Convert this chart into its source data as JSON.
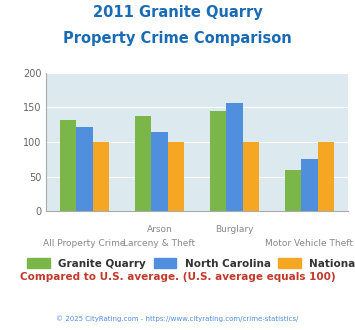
{
  "title_line1": "2011 Granite Quarry",
  "title_line2": "Property Crime Comparison",
  "x_labels_top": [
    "",
    "Arson",
    "Burglary",
    ""
  ],
  "x_labels_bottom": [
    "All Property Crime",
    "Larceny & Theft",
    "",
    "Motor Vehicle Theft"
  ],
  "granite_quarry": [
    131,
    137,
    144,
    60
  ],
  "north_carolina": [
    121,
    114,
    156,
    76
  ],
  "national": [
    100,
    100,
    100,
    100
  ],
  "colors": {
    "granite_quarry": "#7ab648",
    "north_carolina": "#4f8fde",
    "national": "#f5a623"
  },
  "ylim": [
    0,
    200
  ],
  "yticks": [
    0,
    50,
    100,
    150,
    200
  ],
  "background_color": "#dce9ef",
  "title_color": "#1a6bb5",
  "subtitle_text": "Compared to U.S. average. (U.S. average equals 100)",
  "subtitle_color": "#c0392b",
  "copyright_text": "© 2025 CityRating.com - https://www.cityrating.com/crime-statistics/",
  "copyright_color": "#4f8fde",
  "legend_labels": [
    "Granite Quarry",
    "North Carolina",
    "National"
  ]
}
